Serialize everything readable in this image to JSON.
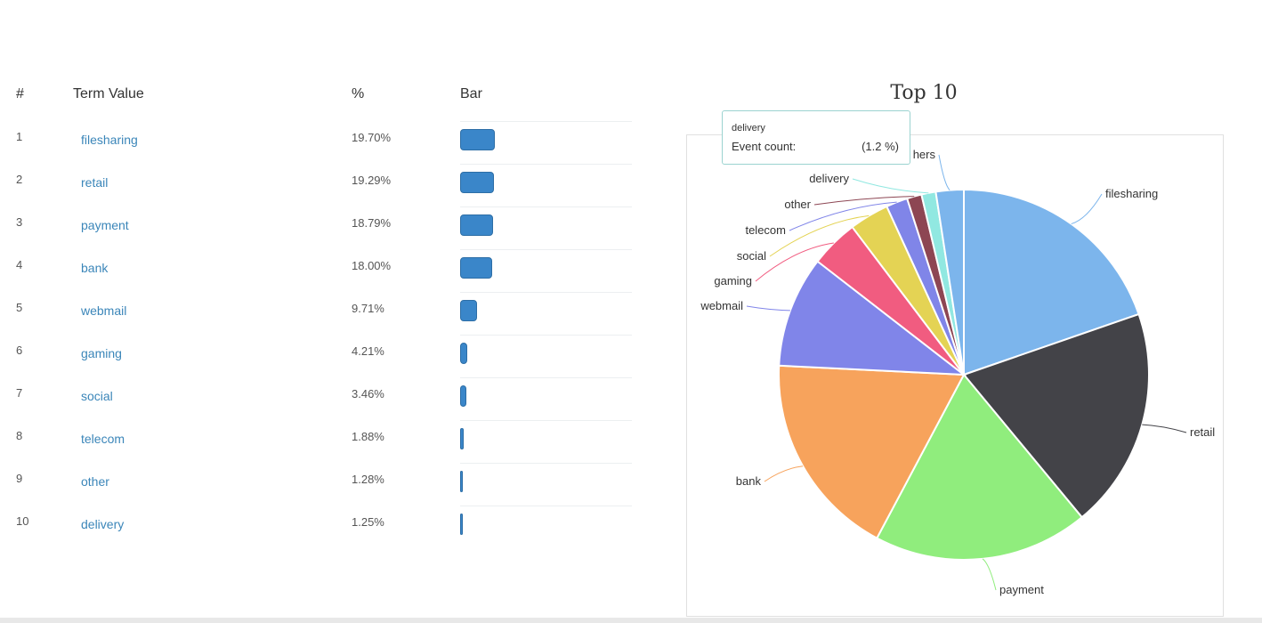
{
  "table": {
    "headers": {
      "num": "#",
      "term": "Term Value",
      "pct": "%",
      "bar": "Bar"
    },
    "rows": [
      {
        "num": "1",
        "term": "filesharing",
        "pct": "19.70%",
        "value": 19.7
      },
      {
        "num": "2",
        "term": "retail",
        "pct": "19.29%",
        "value": 19.29
      },
      {
        "num": "3",
        "term": "payment",
        "pct": "18.79%",
        "value": 18.79
      },
      {
        "num": "4",
        "term": "bank",
        "pct": "18.00%",
        "value": 18.0
      },
      {
        "num": "5",
        "term": "webmail",
        "pct": "9.71%",
        "value": 9.71
      },
      {
        "num": "6",
        "term": "gaming",
        "pct": "4.21%",
        "value": 4.21
      },
      {
        "num": "7",
        "term": "social",
        "pct": "3.46%",
        "value": 3.46
      },
      {
        "num": "8",
        "term": "telecom",
        "pct": "1.88%",
        "value": 1.88
      },
      {
        "num": "9",
        "term": "other",
        "pct": "1.28%",
        "value": 1.28
      },
      {
        "num": "10",
        "term": "delivery",
        "pct": "1.25%",
        "value": 1.25
      }
    ],
    "bar_color": "#3a86c9"
  },
  "tooltip": {
    "term": "delivery",
    "label": "Event count:",
    "value": "(1.2 %)"
  },
  "chart_data": {
    "type": "pie",
    "title": "Top 10",
    "categories": [
      "filesharing",
      "retail",
      "payment",
      "bank",
      "webmail",
      "gaming",
      "social",
      "telecom",
      "other",
      "delivery",
      "others"
    ],
    "values": [
      19.7,
      19.29,
      18.79,
      18.0,
      9.71,
      4.21,
      3.46,
      1.88,
      1.28,
      1.25,
      2.43
    ],
    "colors": [
      "#7cb5ec",
      "#434348",
      "#90ed7d",
      "#f7a35c",
      "#8085e9",
      "#f15c80",
      "#e4d354",
      "#8085e8",
      "#8d4653",
      "#91e8e1",
      "#7cb5ec"
    ],
    "label_texts": [
      "filesharing",
      "retail",
      "payment",
      "bank",
      "webmail",
      "gaming",
      "social",
      "telecom",
      "other",
      "delivery",
      "hers"
    ]
  }
}
